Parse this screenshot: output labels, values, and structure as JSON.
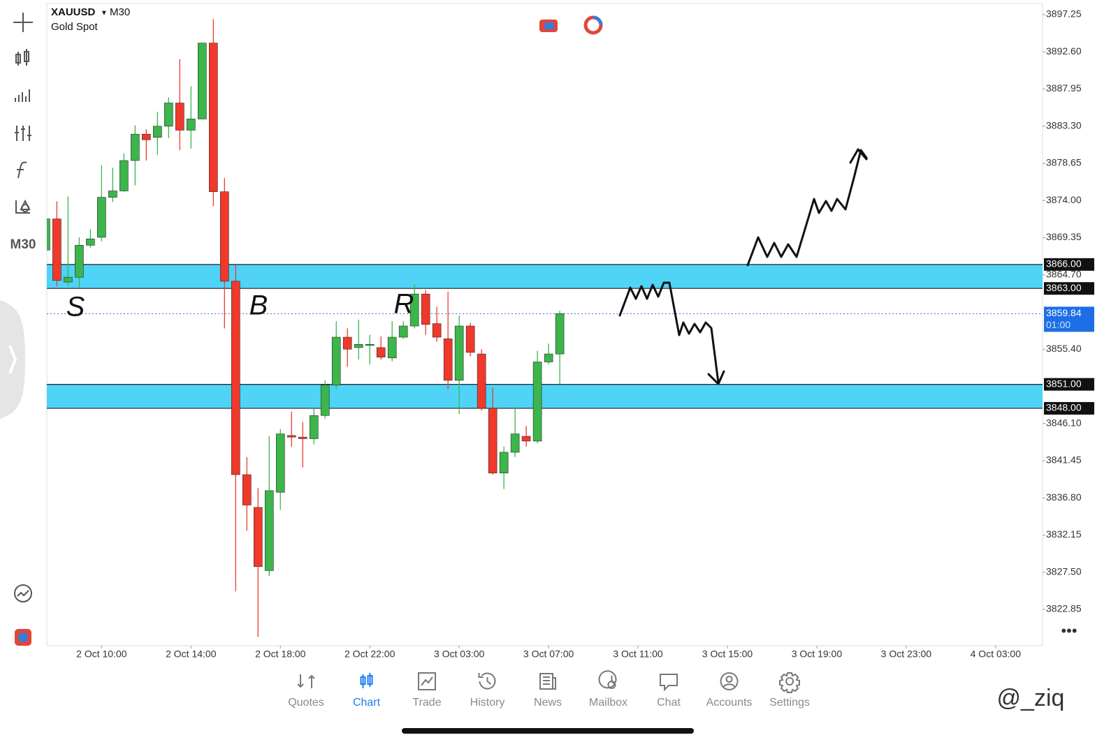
{
  "chart_data": {
    "type": "candlestick",
    "symbol": "XAUUSD",
    "timeframe": "M30",
    "subtitle": "Gold Spot",
    "open": [
      3867.8,
      3871.7,
      3863.8,
      3864.4,
      3868.4,
      3869.4,
      3874.4,
      3875.2,
      3879.0,
      3882.3,
      3881.9,
      3883.3,
      3886.2,
      3882.8,
      3884.2,
      3893.7,
      3875.1,
      3863.9,
      3839.7,
      3835.6,
      3827.7,
      3837.5,
      3844.6,
      3844.4,
      3844.2,
      3847.1,
      3850.9,
      3856.9,
      3855.6,
      3855.9,
      3855.6,
      3854.3,
      3856.9,
      3858.3,
      3862.3,
      3858.6,
      3856.7,
      3851.5,
      3858.3,
      3854.8,
      3848.0,
      3839.9,
      3842.5,
      3844.5,
      3843.9,
      3853.8,
      3854.8
    ],
    "high": [
      3872.0,
      3873.9,
      3874.5,
      3869.4,
      3870.4,
      3878.4,
      3878.1,
      3879.9,
      3883.4,
      3882.9,
      3885.1,
      3886.9,
      3891.7,
      3888.3,
      3893.7,
      3896.7,
      3876.8,
      3865.9,
      3841.9,
      3838.0,
      3844.5,
      3845.4,
      3847.6,
      3846.3,
      3848.0,
      3851.5,
      3858.9,
      3858.0,
      3859.1,
      3857.2,
      3857.0,
      3858.9,
      3858.9,
      3863.5,
      3862.8,
      3860.7,
      3862.6,
      3859.6,
      3858.7,
      3855.4,
      3850.6,
      3843.2,
      3848.0,
      3845.8,
      3855.2,
      3856.1,
      3860.2
    ],
    "low": [
      3867.5,
      3863.3,
      3863.3,
      3863.1,
      3868.1,
      3868.9,
      3873.8,
      3875.1,
      3875.9,
      3879.0,
      3879.7,
      3881.8,
      3880.3,
      3880.5,
      3884.2,
      3873.3,
      3858.0,
      3825.1,
      3832.7,
      3819.4,
      3827.0,
      3835.3,
      3843.2,
      3840.6,
      3843.5,
      3846.7,
      3850.4,
      3853.2,
      3854.1,
      3853.5,
      3854.1,
      3853.9,
      3856.7,
      3858.0,
      3857.2,
      3856.3,
      3850.4,
      3847.3,
      3854.5,
      3847.7,
      3839.7,
      3837.9,
      3841.9,
      3843.2,
      3843.6,
      3853.5,
      3851.0
    ],
    "close": [
      3871.7,
      3864.0,
      3864.4,
      3868.4,
      3869.2,
      3874.4,
      3875.2,
      3879.0,
      3882.3,
      3881.6,
      3883.3,
      3886.2,
      3882.8,
      3884.2,
      3893.7,
      3875.1,
      3863.9,
      3839.7,
      3835.9,
      3828.2,
      3837.7,
      3844.8,
      3844.4,
      3844.2,
      3847.1,
      3850.9,
      3856.9,
      3855.4,
      3856.0,
      3856.0,
      3854.4,
      3856.9,
      3858.3,
      3862.3,
      3858.5,
      3856.9,
      3851.5,
      3858.3,
      3855.0,
      3848.0,
      3839.9,
      3842.5,
      3844.8,
      3843.9,
      3853.8,
      3854.8,
      3859.84
    ],
    "up_color": "#3cb54b",
    "down_color": "#f0392b",
    "zone_color": "#4fd3f7",
    "xlim": [
      0.1,
      89.2
    ],
    "xticks": [
      {
        "value": 5,
        "label": "2 Oct 10:00"
      },
      {
        "value": 13,
        "label": "2 Oct 14:00"
      },
      {
        "value": 21,
        "label": "2 Oct 18:00"
      },
      {
        "value": 29,
        "label": "2 Oct 22:00"
      },
      {
        "value": 37,
        "label": "3 Oct 03:00"
      },
      {
        "value": 45,
        "label": "3 Oct 07:00"
      },
      {
        "value": 53,
        "label": "3 Oct 11:00"
      },
      {
        "value": 61,
        "label": "3 Oct 15:00"
      },
      {
        "value": 69,
        "label": "3 Oct 19:00"
      },
      {
        "value": 77,
        "label": "3 Oct 23:00"
      },
      {
        "value": 85,
        "label": "4 Oct 03:00"
      }
    ],
    "ylim": [
      3818.3,
      3898.65
    ],
    "yticks": [
      3897.25,
      {
        "value": 3892.6,
        "label": "3892.60"
      },
      3887.95,
      {
        "value": 3883.3,
        "label": "3883.30"
      },
      3878.65,
      {
        "value": 3874,
        "label": "3874.00"
      },
      3869.35,
      {
        "value": 3864.7,
        "label": "3864.70"
      },
      {
        "value": 3855.4,
        "label": "3855.40"
      },
      {
        "value": 3846.1,
        "label": "3846.10"
      },
      3841.45,
      {
        "value": 3836.8,
        "label": "3836.80"
      },
      3832.15,
      {
        "value": 3827.5,
        "label": "3827.50"
      },
      3822.85
    ],
    "zones": [
      {
        "high": {
          "value": 3866,
          "label": "3866.00"
        },
        "low": {
          "value": 3863,
          "label": "3863.00"
        }
      },
      {
        "high": {
          "value": 3851,
          "label": "3851.00"
        },
        "low": {
          "value": 3848,
          "label": "3848.00"
        }
      }
    ],
    "current_price": {
      "value": 3859.84,
      "label": "3859.84",
      "timer": "01:00"
    },
    "annotations": [
      "S",
      "B",
      "R"
    ]
  },
  "toolbar_label": "M30",
  "nav": {
    "items": [
      "Quotes",
      "Chart",
      "Trade",
      "History",
      "News",
      "Mailbox",
      "Chat",
      "Accounts",
      "Settings"
    ],
    "active": 1
  },
  "watermark": "@_ziq"
}
